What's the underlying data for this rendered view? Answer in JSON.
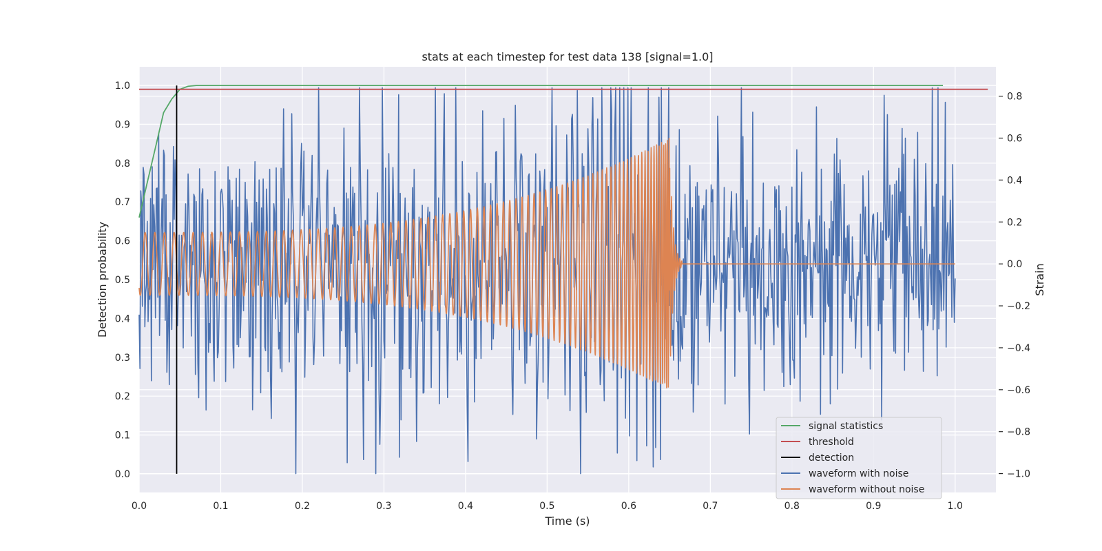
{
  "chart_data": {
    "type": "line",
    "title": "stats at each timestep for test data 138 [signal=1.0]",
    "xlabel": "Time (s)",
    "ylabel": "Detection probability",
    "ylabel_right": "Strain",
    "xlim": [
      0.0,
      1.05
    ],
    "ylim": [
      -0.048,
      1.048
    ],
    "ylim_right": [
      -1.09,
      0.94
    ],
    "x_ticks": [
      "0.0",
      "0.1",
      "0.2",
      "0.3",
      "0.4",
      "0.5",
      "0.6",
      "0.7",
      "0.8",
      "0.9",
      "1.0"
    ],
    "y_ticks": [
      "0.0",
      "0.1",
      "0.2",
      "0.3",
      "0.4",
      "0.5",
      "0.6",
      "0.7",
      "0.8",
      "0.9",
      "1.0"
    ],
    "y_ticks_right": [
      "−1.0",
      "−0.8",
      "−0.6",
      "−0.4",
      "−0.2",
      "0.0",
      "0.2",
      "0.4",
      "0.6",
      "0.8"
    ],
    "grid": true,
    "legend_position": "lower-right",
    "colors": {
      "signal_statistics": "#55a868",
      "threshold": "#c44e52",
      "detection": "#000000",
      "waveform_with_noise": "#4c72b0",
      "waveform_without_noise": "#dd8452",
      "background": "#eaeaf2",
      "grid": "#ffffff"
    },
    "series": [
      {
        "name": "signal statistics",
        "axis": "left",
        "x": [
          0.0,
          0.01,
          0.02,
          0.03,
          0.04,
          0.05,
          0.06,
          0.07,
          0.08,
          0.1,
          0.2,
          0.5,
          0.985
        ],
        "y": [
          0.66,
          0.75,
          0.84,
          0.93,
          0.965,
          0.99,
          0.998,
          1.0,
          1.0,
          1.0,
          1.0,
          1.0,
          1.0
        ]
      },
      {
        "name": "threshold",
        "axis": "left",
        "x": [
          0.0,
          1.04
        ],
        "y": [
          0.99,
          0.99
        ]
      },
      {
        "name": "detection",
        "axis": "left",
        "x": [
          0.046,
          0.046
        ],
        "y": [
          0.0,
          1.0
        ]
      },
      {
        "name": "waveform with noise",
        "axis": "right",
        "x": [
          0.0,
          1.0
        ],
        "generator": {
          "samples": 1000,
          "sigma": 0.3,
          "extremes": {
            "max": 0.84,
            "min": -1.0
          }
        }
      },
      {
        "name": "waveform without noise",
        "axis": "right",
        "x": [
          0.0,
          0.65
        ],
        "generator": {
          "start_amplitude": 0.15,
          "end_amplitude": 0.6,
          "peak_time": 0.65,
          "ringdown_end": 0.665,
          "end": 1.0
        }
      }
    ],
    "legend": [
      "signal statistics",
      "threshold",
      "detection",
      "waveform with noise",
      "waveform without noise"
    ]
  }
}
